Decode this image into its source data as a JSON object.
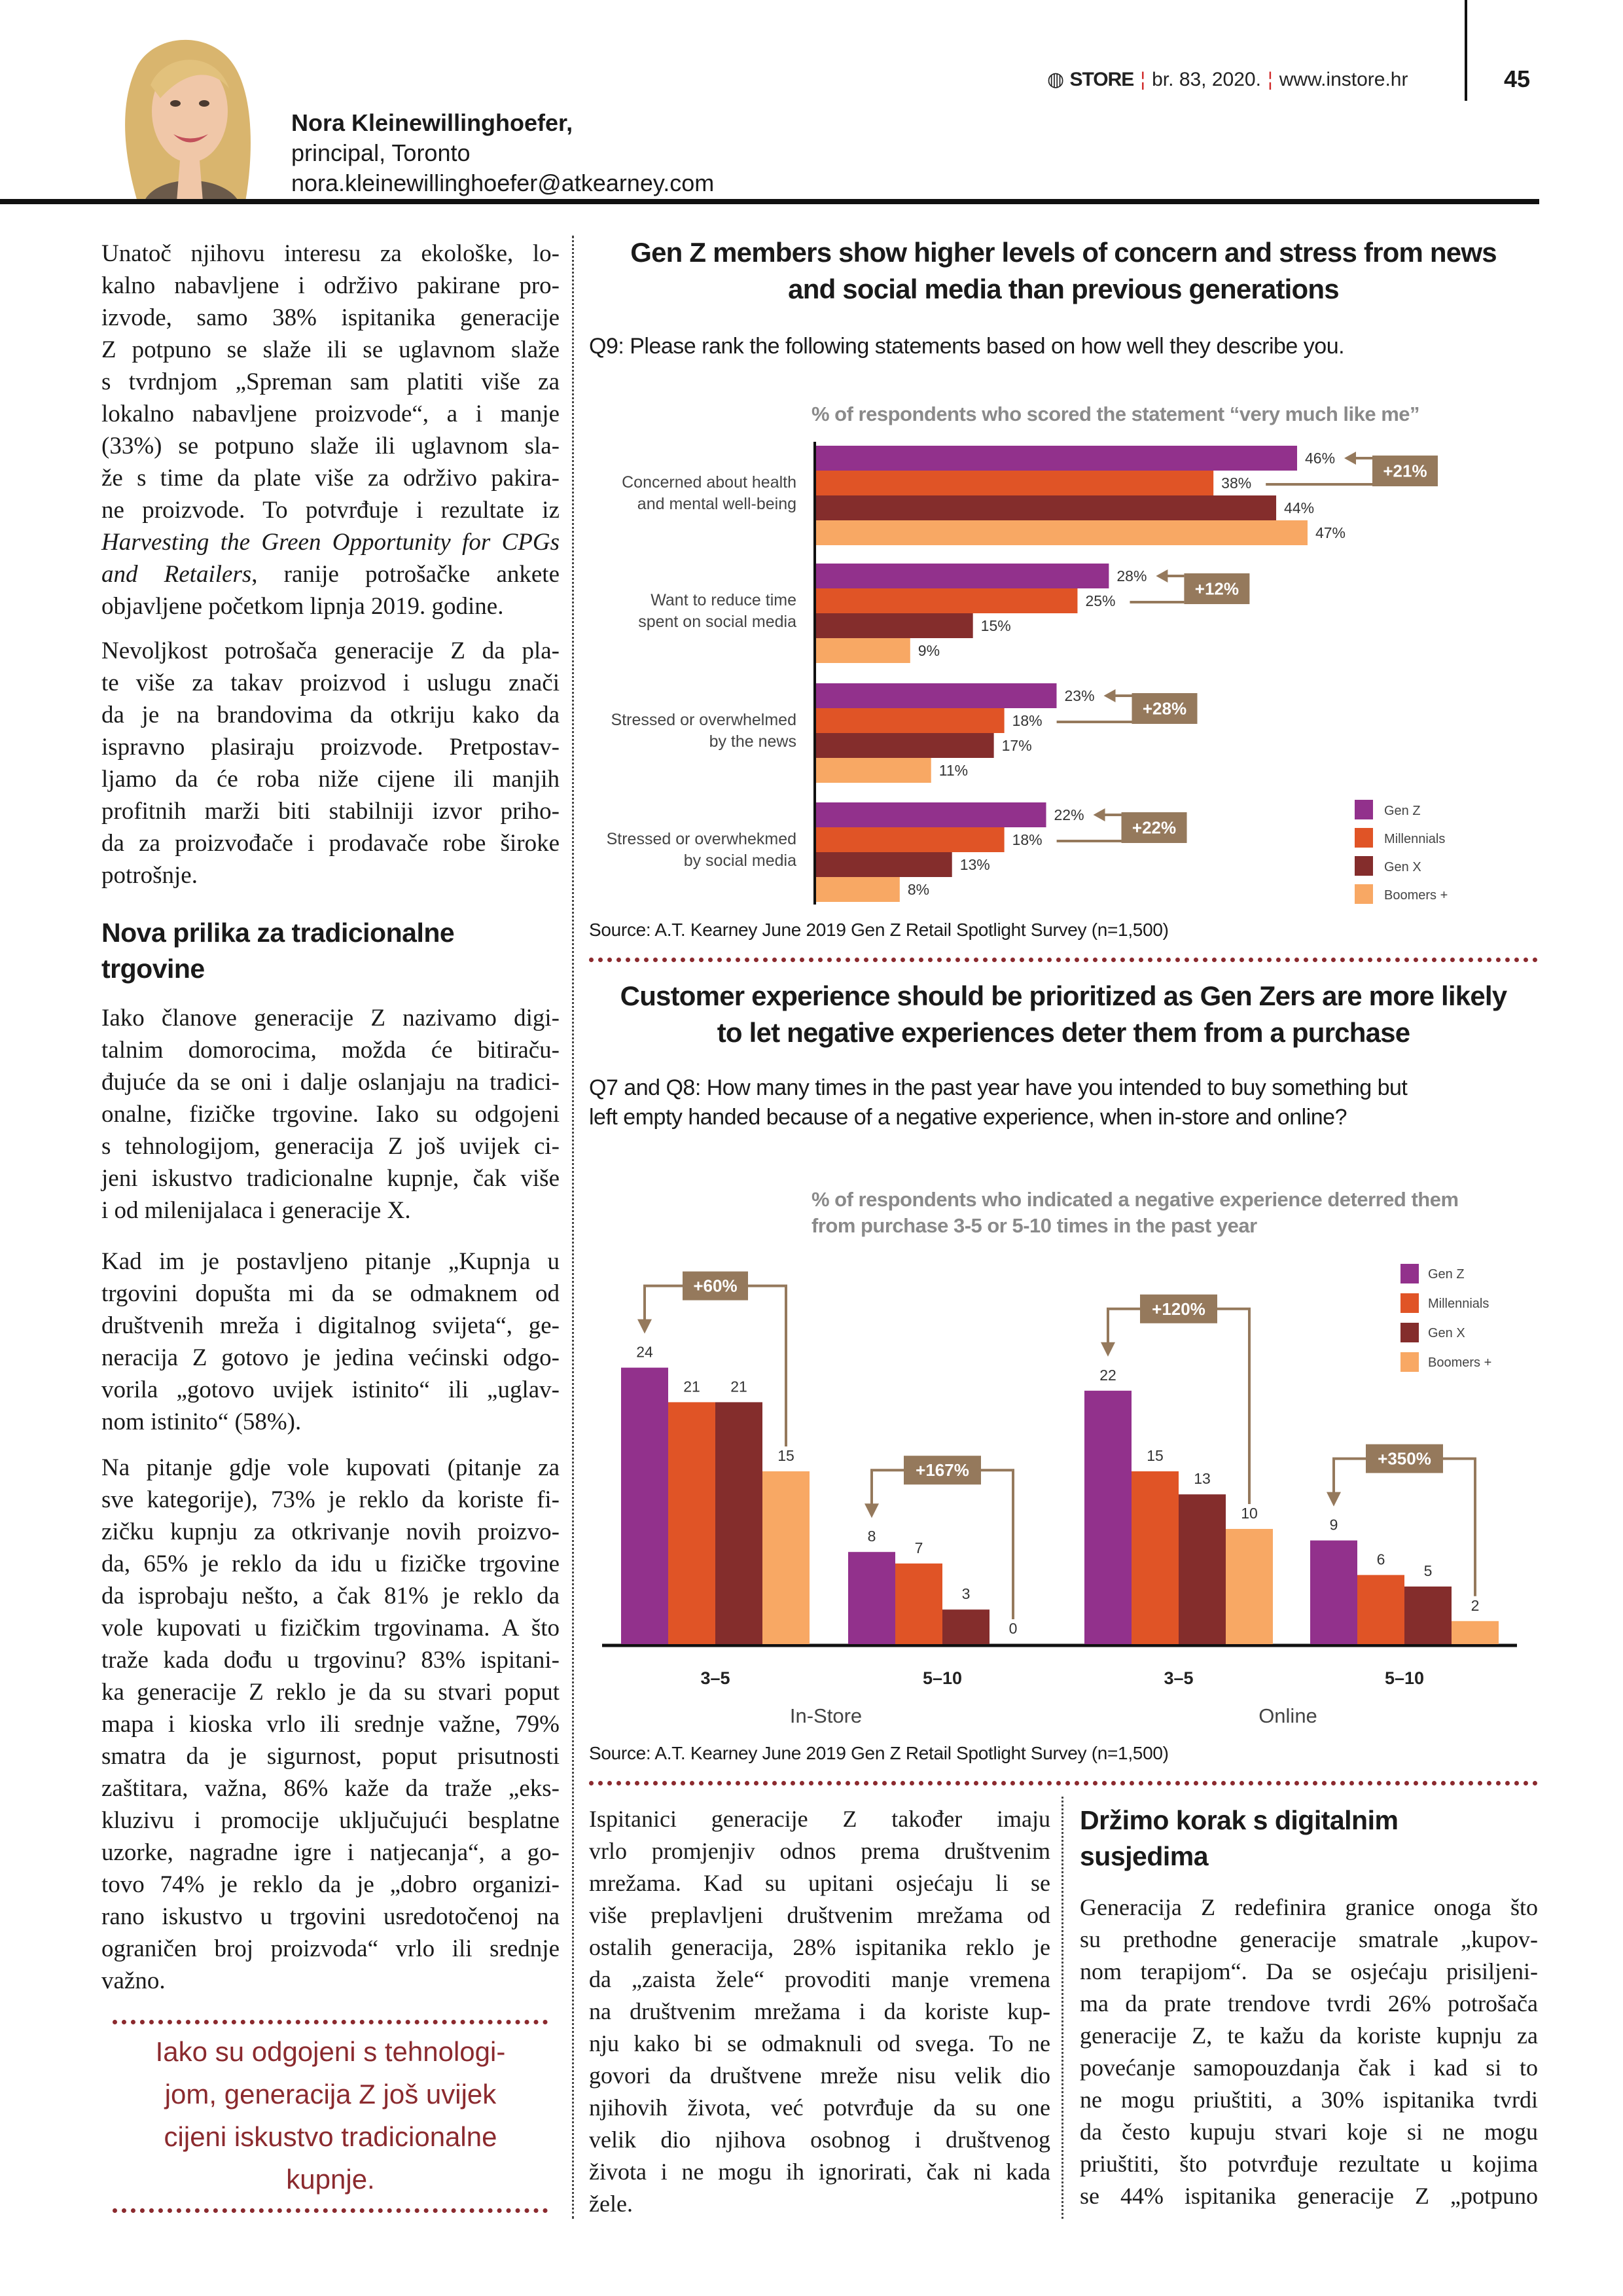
{
  "header": {
    "brand": "STORE",
    "issue": "br. 83, 2020.",
    "website": "www.instore.hr",
    "page_number": "45"
  },
  "author": {
    "name": "Nora Kleinewillinghoefer,",
    "role": "principal, Toronto",
    "email": "nora.kleinewillinghoefer@atkearney.com"
  },
  "left_column": {
    "p1": [
      "Unatoč njihovu interesu za ekološke, lo-",
      "kalno nabavljene i održivo pakirane pro-",
      "izvode, samo 38% ispitanika generacije",
      "Z potpuno se slaže ili se uglavnom slaže",
      "s tvrdnjom „Spreman sam platiti više za",
      "lokalno nabavljene proizvode“, a i manje",
      "(33%) se potpuno slaže ili uglavnom sla-",
      "že s time da plate više za održivo pakira-",
      "ne proizvode. To potvrđuje i rezultate iz",
      {
        "italic": "Harvesting the Green Opportunity for CPGs",
        "text": ""
      },
      {
        "italic": "and Retailers",
        "text": ", ranije potrošačke ankete"
      },
      "objavljene početkom lipnja 2019. godine."
    ],
    "p2": [
      "Nevoljkost potrošača generacije Z da pla-",
      "te više za takav proizvod i uslugu znači",
      "da je na brandovima da otkriju kako da",
      "ispravno plasiraju proizvode. Pretpostav-",
      "ljamo da će roba niže cijene ili manjih",
      "profitnih marži biti stabilniji izvor priho-",
      "da za proizvođače i prodavače robe široke",
      "potrošnje."
    ],
    "heading": "Nova prilika za tradicionalne trgovine",
    "p3": [
      "Iako članove generacije Z nazivamo digi-",
      "talnim domorocima, možda će bitiraču-",
      "đujuće da se oni i dalje oslanjaju na tradici-",
      "onalne, fizičke trgovine. Iako su odgojeni",
      "s tehnologijom, generacija Z još uvijek ci-",
      "jeni iskustvo tradicionalne kupnje, čak više",
      "i od milenijalaca i generacije X."
    ],
    "p4": [
      "Kad im je postavljeno pitanje „Kupnja u",
      "trgovini dopušta mi da se odmaknem od",
      "društvenih mreža i digitalnog svijeta“, ge-",
      "neracija Z gotovo je jedina većinski odgo-",
      "vorila „gotovo uvijek istinito“ ili „uglav-",
      "nom istinito“ (58%)."
    ],
    "p5": [
      "Na pitanje gdje vole kupovati (pitanje za",
      "sve kategorije), 73% je reklo da koriste fi-",
      "zičku kupnju za otkrivanje novih proizvo-",
      "da, 65% je reklo da idu u fizičke trgovine",
      "da isprobaju nešto, a čak 81% je reklo da",
      "vole kupovati u fizičkim trgovinama. A što",
      "traže kada dođu u trgovinu? 83% ispitani-",
      "ka generacije Z reklo je da su stvari poput",
      "mapa i kioska vrlo ili srednje važne, 79%",
      "smatra da je sigurnost, poput prisutnosti",
      "zaštitara, važna, 86% kaže da traže „eks-",
      "kluzivu i promocije uključujući besplatne",
      "uzorke, nagradne igre i natjecanja“, a go-",
      "tovo 74% je reklo da je „dobro organizi-",
      "rano iskustvo u trgovini usredotočenoj na",
      "ograničen broj proizvoda“ vrlo ili srednje",
      "važno."
    ],
    "pullquote": [
      "Iako su odgojeni s tehnologi-",
      "jom, generacija Z još uvijek",
      "cijeni iskustvo tradicionalne",
      "kupnje."
    ]
  },
  "middle_column": {
    "p1": [
      "Ispitanici generacije Z također imaju",
      "vrlo promjenjiv odnos prema društvenim",
      "mrežama. Kad su upitani osjećaju li se",
      "više preplavljeni društvenim mrežama od",
      "ostalih generacija, 28% ispitanika reklo je",
      "da „zaista žele“ provoditi manje vremena",
      "na društvenim mrežama i da koriste kup-",
      "nju kako bi se odmaknuli od svega. To ne",
      "govori da društvene mreže nisu velik dio",
      "njihovih života, već potvrđuje da su one",
      "velik dio njihova osobnog i društvenog",
      "života i ne mogu ih ignorirati, čak ni kada",
      "žele."
    ]
  },
  "right_column": {
    "heading": "Držimo korak s digitalnim susjedima",
    "p1": [
      "Generacija Z redefinira granice onoga što",
      "su prethodne generacije smatrale „kupov-",
      "nom terapijom“. Da se osjećaju prisiljeni-",
      "ma da prate trendove tvrdi 26% potrošača",
      "generacije Z, te kažu da koriste kupnju za",
      "povećanje samopouzdanja čak i kad si to",
      "ne mogu priuštiti, a 30% ispitanika tvrdi",
      "da često kupuju stvari koje si ne mogu",
      "priuštiti, što potvrđuje rezultate u kojima",
      "se 44% ispitanika generacije Z „potpuno"
    ]
  },
  "colors": {
    "gen_z": "#92318C",
    "millennials": "#E05426",
    "gen_x": "#842D2C",
    "boomers": "#F8A864",
    "annotation": "#95795C",
    "accent": "#8B2A2E"
  },
  "chart_data": [
    {
      "type": "bar",
      "orientation": "horizontal",
      "title": "Gen Z members show higher levels of concern and stress from news and social media than previous generations",
      "question": "Q9: Please rank the following statements based on how well they describe you.",
      "subtitle": "% of respondents who scored the statement “very much like me”",
      "categories": [
        [
          "Concerned about health",
          "and mental well-being"
        ],
        [
          "Want to reduce time",
          "spent on social media"
        ],
        [
          "Stressed or overwhelmed",
          "by the news"
        ],
        [
          "Stressed or overwhekmed",
          "by social media"
        ]
      ],
      "series": [
        {
          "name": "Gen Z",
          "values": [
            46,
            28,
            23,
            22
          ]
        },
        {
          "name": "Millennials",
          "values": [
            38,
            25,
            18,
            18
          ]
        },
        {
          "name": "Gen X",
          "values": [
            44,
            15,
            17,
            13
          ]
        },
        {
          "name": "Boomers +",
          "values": [
            47,
            9,
            11,
            8
          ]
        }
      ],
      "value_suffix": "%",
      "annotations": [
        "+21%",
        "+12%",
        "+28%",
        "+22%"
      ],
      "legend_position": "bottom-right",
      "grid": false,
      "xlim": [
        0,
        50
      ],
      "source": "Source: A.T. Kearney June 2019 Gen Z Retail Spotlight Survey (n=1,500)"
    },
    {
      "type": "bar",
      "orientation": "vertical",
      "title": "Customer experience should be prioritized as Gen Zers are more likely to let negative experiences deter them from a purchase",
      "question": "Q7 and Q8: How many times in the past year have you intended to buy something but left empty handed because of a negative experience, when in-store and online?",
      "subtitle": "% of respondents who indicated a negative experience deterred them from purchase 3-5 or 5-10 times in the past year",
      "categories": [
        "3–5",
        "5–10",
        "3–5",
        "5–10"
      ],
      "groups": [
        "In-Store",
        "Online"
      ],
      "series": [
        {
          "name": "Gen Z",
          "values": [
            24,
            8,
            22,
            9
          ]
        },
        {
          "name": "Millennials",
          "values": [
            21,
            7,
            15,
            6
          ]
        },
        {
          "name": "Gen X",
          "values": [
            21,
            3,
            13,
            5
          ]
        },
        {
          "name": "Boomers +",
          "values": [
            15,
            0,
            10,
            2
          ]
        }
      ],
      "annotations": [
        "+60%",
        "+167%",
        "+120%",
        "+350%"
      ],
      "legend_position": "top-right",
      "grid": false,
      "ylim": [
        0,
        25
      ],
      "source": "Source: A.T. Kearney June 2019 Gen Z Retail Spotlight Survey (n=1,500)"
    }
  ]
}
